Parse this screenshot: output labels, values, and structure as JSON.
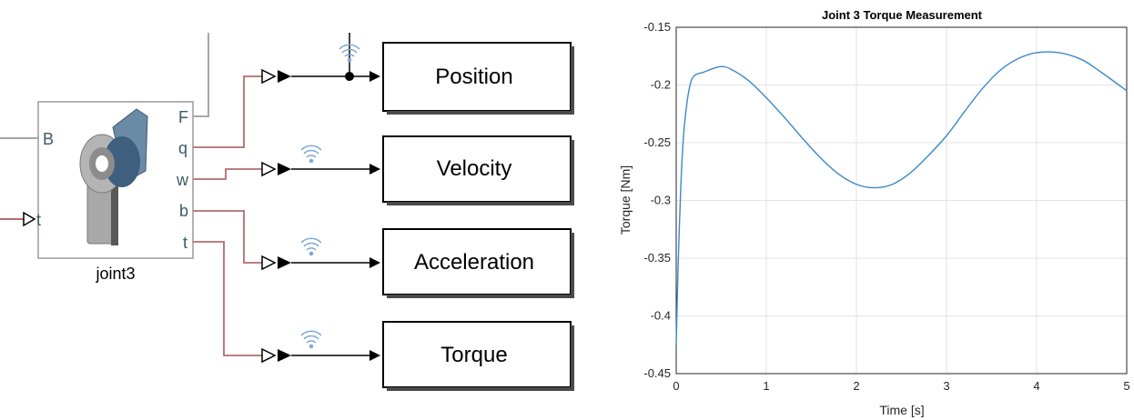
{
  "diagram": {
    "joint_block": {
      "name": "joint3",
      "input_ports": [
        "B",
        "t"
      ],
      "output_ports": [
        "F",
        "q",
        "w",
        "b",
        "t"
      ]
    },
    "scopes": [
      {
        "label": "Position"
      },
      {
        "label": "Velocity"
      },
      {
        "label": "Acceleration"
      },
      {
        "label": "Torque"
      }
    ],
    "colors": {
      "signal_line": "#b56b6b",
      "connection_line": "#a6a6a6",
      "wireless_icon": "#7fa8d6",
      "block_fill": "#ffffff",
      "joint_shaft": "#5c7c99"
    }
  },
  "chart_data": {
    "type": "line",
    "title": "Joint 3 Torque Measurement",
    "xlabel": "Time [s]",
    "ylabel": "Torque [Nm]",
    "xlim": [
      0,
      5
    ],
    "ylim": [
      -0.45,
      -0.15
    ],
    "xticks": [
      "0",
      "1",
      "2",
      "3",
      "4",
      "5"
    ],
    "yticks": [
      "-0.15",
      "-0.2",
      "-0.25",
      "-0.3",
      "-0.35",
      "-0.4",
      "-0.45"
    ],
    "grid": true,
    "color": "#3c89c8",
    "series": [
      {
        "x": [
          0,
          0.02,
          0.05,
          0.08,
          0.12,
          0.16,
          0.2,
          0.25,
          0.3,
          0.4,
          0.5,
          0.6,
          0.8,
          1.0,
          1.2,
          1.4,
          1.6,
          1.8,
          2.0,
          2.2,
          2.4,
          2.6,
          2.8,
          3.0,
          3.2,
          3.4,
          3.6,
          3.8,
          4.0,
          4.25,
          4.5,
          4.7,
          5.0
        ],
        "y": [
          -0.425,
          -0.36,
          -0.29,
          -0.245,
          -0.215,
          -0.198,
          -0.192,
          -0.19,
          -0.189,
          -0.186,
          -0.184,
          -0.186,
          -0.196,
          -0.211,
          -0.228,
          -0.246,
          -0.263,
          -0.277,
          -0.286,
          -0.289,
          -0.286,
          -0.276,
          -0.261,
          -0.244,
          -0.223,
          -0.203,
          -0.187,
          -0.177,
          -0.172,
          -0.172,
          -0.178,
          -0.188,
          -0.205
        ]
      }
    ]
  }
}
